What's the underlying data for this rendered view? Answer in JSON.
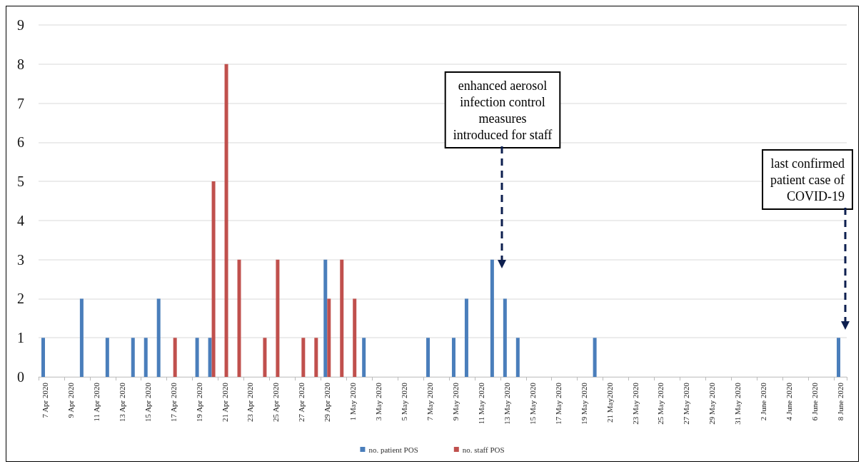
{
  "chart_data": {
    "type": "bar",
    "categories": [
      "7 Apr 2020",
      null,
      "9 Apr 2020",
      null,
      "11 Apr 2020",
      null,
      "13 Apr 2020",
      null,
      "15 Apr 2020",
      null,
      "17 Apr 2020",
      null,
      "19 Apr 2020",
      null,
      "21 Apr 2020",
      null,
      "23 Apr 2020",
      null,
      "25 Apr 2020",
      null,
      "27 Apr 2020",
      null,
      "29 Apr 2020",
      null,
      "1 May 2020",
      null,
      "3 May 2020",
      null,
      "5 May 2020",
      null,
      "7 May 2020",
      null,
      "9 May 2020",
      null,
      "11 May 2020",
      null,
      "13 May 2020",
      null,
      "15 May 2020",
      null,
      "17 May 2020",
      null,
      "19 May 2020",
      null,
      "21 May2020",
      null,
      "23 May 2020",
      null,
      "25 May 2020",
      null,
      "27 May 2020",
      null,
      "29 May 2020",
      null,
      "31 May 2020",
      null,
      "2 June 2020",
      null,
      "4 June 2020",
      null,
      "6 June 2020",
      null,
      "8 June 2020"
    ],
    "series": [
      {
        "name": "no. patient POS",
        "color": "#4a7ebb",
        "values": [
          1,
          0,
          0,
          2,
          0,
          1,
          0,
          1,
          1,
          2,
          0,
          0,
          1,
          1,
          0,
          0,
          0,
          0,
          0,
          0,
          0,
          0,
          3,
          0,
          0,
          1,
          0,
          0,
          0,
          0,
          1,
          0,
          1,
          2,
          0,
          3,
          2,
          1,
          0,
          0,
          0,
          0,
          0,
          1,
          0,
          0,
          0,
          0,
          0,
          0,
          0,
          0,
          0,
          0,
          0,
          0,
          0,
          0,
          0,
          0,
          0,
          0,
          1
        ]
      },
      {
        "name": "no. staff POS",
        "color": "#c0504d",
        "values": [
          0,
          0,
          0,
          0,
          0,
          0,
          0,
          0,
          0,
          0,
          1,
          0,
          0,
          5,
          8,
          3,
          0,
          1,
          3,
          0,
          1,
          1,
          2,
          3,
          2,
          0,
          0,
          0,
          0,
          0,
          0,
          0,
          0,
          0,
          0,
          0,
          0,
          0,
          0,
          0,
          0,
          0,
          0,
          0,
          0,
          0,
          0,
          0,
          0,
          0,
          0,
          0,
          0,
          0,
          0,
          0,
          0,
          0,
          0,
          0,
          0,
          0,
          0
        ]
      }
    ],
    "ylim": [
      0,
      9
    ],
    "yticks": [
      0,
      1,
      2,
      3,
      4,
      5,
      6,
      7,
      8,
      9
    ],
    "grid": "y",
    "legend": "bottom",
    "annotations": [
      "enhanced aerosol\ninfection control\nmeasures\nintroduced for staff",
      "last confirmed\npatient case of\nCOVID-19"
    ]
  }
}
